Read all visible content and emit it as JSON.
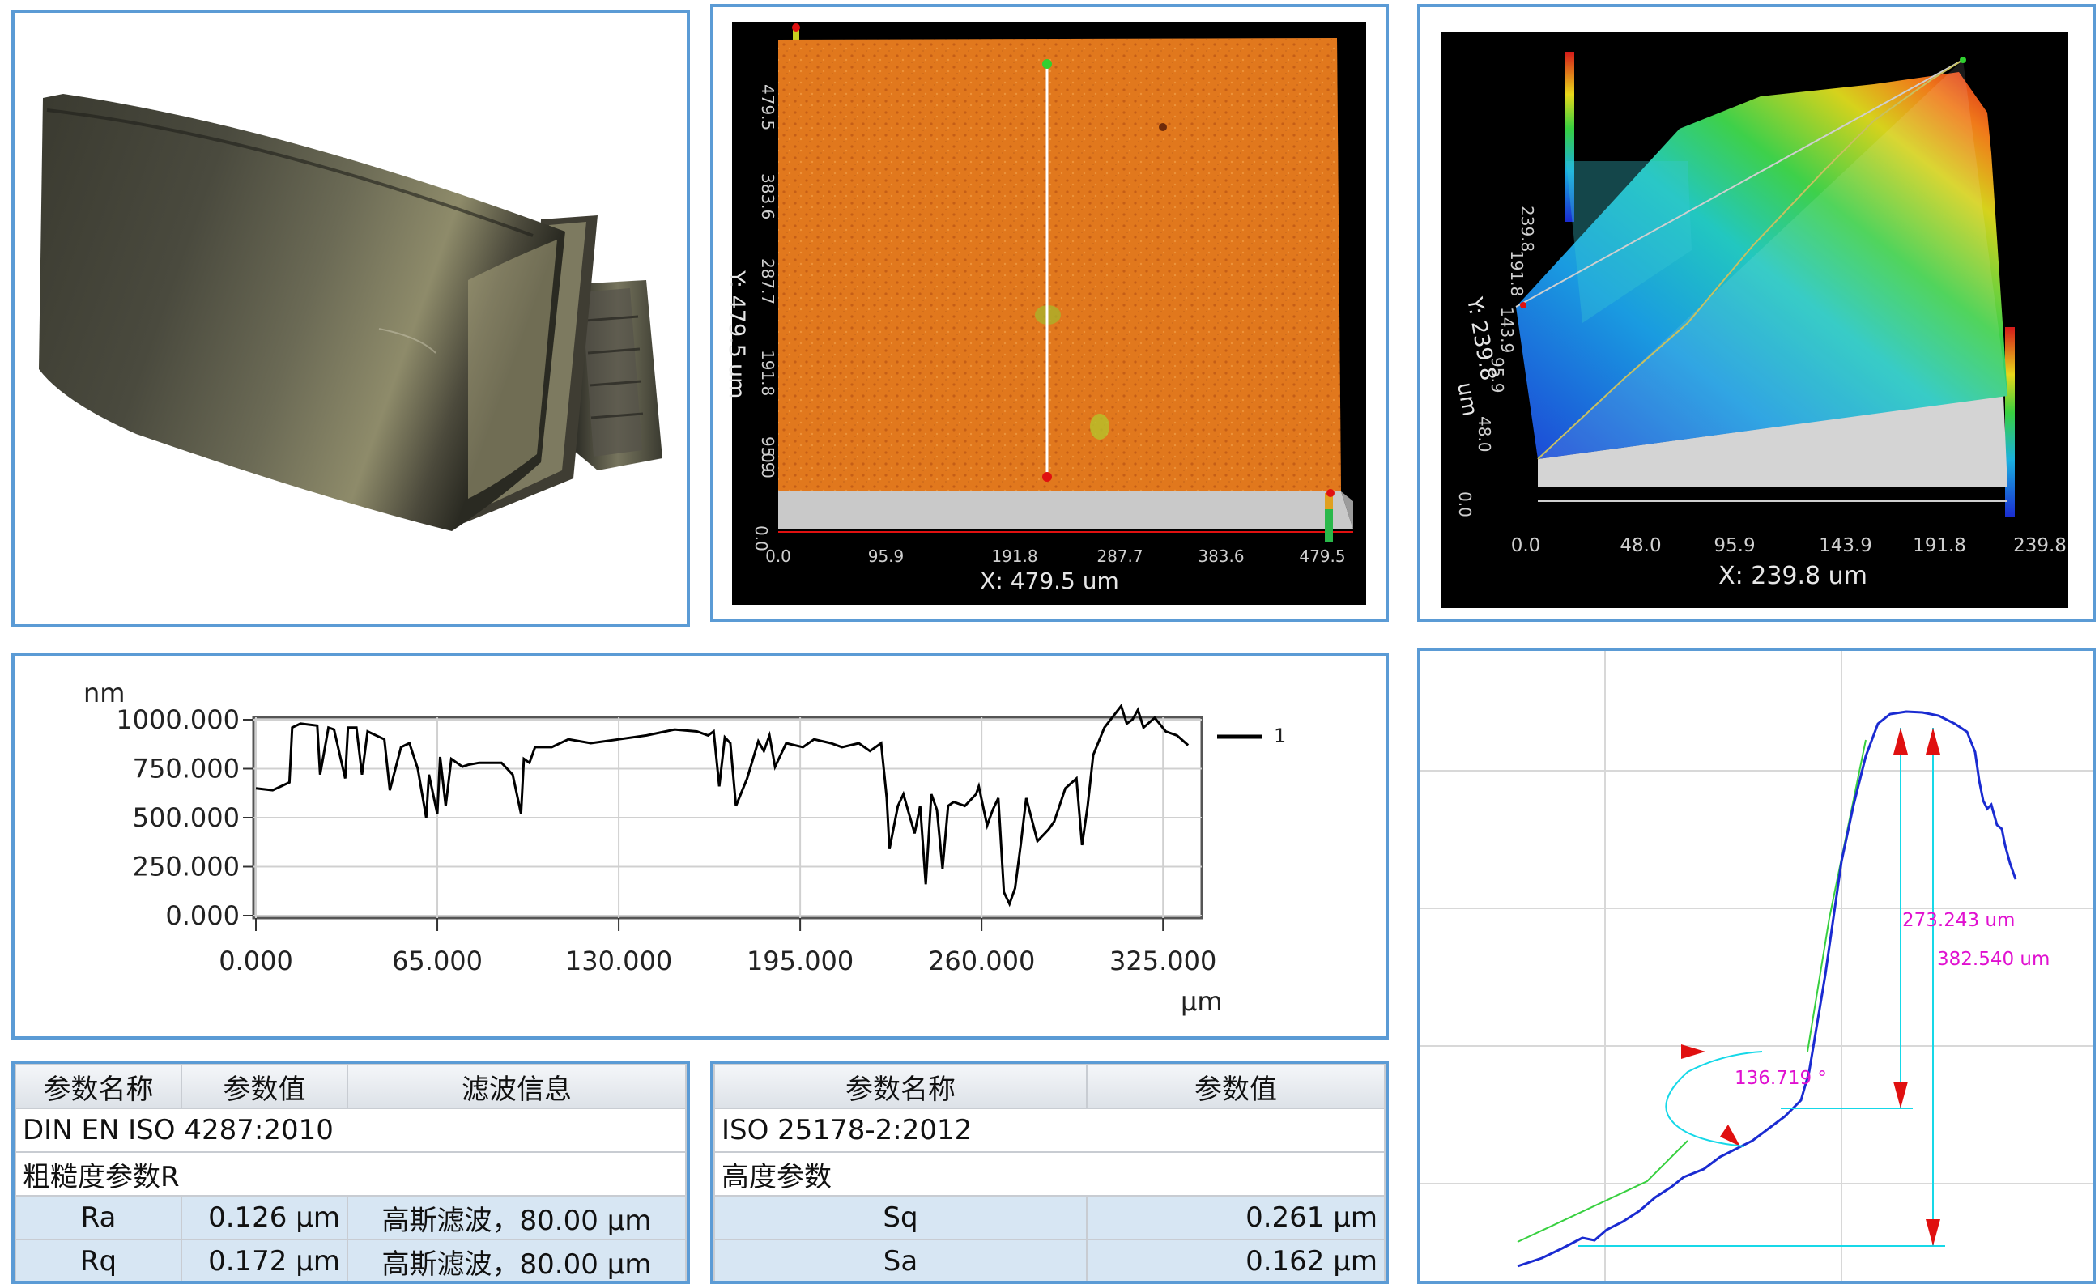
{
  "topo2d": {
    "y_axis_label": "Y: 479.5",
    "y_axis_unit": "um",
    "x_axis_label": "X: 479.5 um",
    "y_ticks": [
      "0.0",
      "95.9",
      "191.8",
      "287.7",
      "383.6",
      "479.5"
    ],
    "x_ticks": [
      "0.0",
      "95.9",
      "191.8",
      "287.7",
      "383.6",
      "479.5"
    ],
    "z_tick": "0.0"
  },
  "topo3d": {
    "y_axis_label": "Y: 239.8",
    "y_axis_unit": "um",
    "x_axis_label": "X: 239.8 um",
    "y_ticks": [
      "0.0",
      "48.0",
      "95.9",
      "143.9",
      "191.8",
      "239.8"
    ],
    "x_ticks": [
      "0.0",
      "48.0",
      "95.9",
      "143.9",
      "191.8",
      "239.8"
    ],
    "z_tick": "0.0"
  },
  "profile_chart": {
    "chart_data": {
      "type": "line",
      "ylabel": "nm",
      "xlabel": "μm",
      "xlim": [
        0,
        338
      ],
      "ylim": [
        0,
        1000
      ],
      "y_ticks": [
        "1000.000",
        "750.000",
        "500.000",
        "250.000",
        "0.000"
      ],
      "x_ticks": [
        "0.000",
        "65.000",
        "130.000",
        "195.000",
        "260.000",
        "325.000"
      ],
      "series": [
        {
          "name": "1",
          "x": [
            0,
            6,
            12,
            13,
            16,
            22,
            23,
            26,
            28,
            32,
            33,
            36,
            38,
            40,
            46,
            48,
            52,
            55,
            58,
            61,
            62,
            65,
            66,
            68,
            70,
            74,
            76,
            80,
            88,
            92,
            95,
            96,
            98,
            100,
            106,
            112,
            120,
            130,
            140,
            150,
            158,
            162,
            164,
            166,
            168,
            170,
            172,
            176,
            180,
            182,
            184,
            186,
            190,
            196,
            200,
            206,
            210,
            216,
            220,
            224,
            226,
            227,
            230,
            232,
            236,
            238,
            240,
            242,
            244,
            246,
            248,
            250,
            254,
            258,
            259,
            262,
            264,
            266,
            268,
            270,
            272,
            274,
            276,
            280,
            284,
            286,
            290,
            294,
            296,
            298,
            300,
            304,
            310,
            312,
            314,
            316,
            318,
            322,
            326,
            330,
            334
          ],
          "y": [
            650,
            640,
            680,
            960,
            980,
            970,
            720,
            960,
            950,
            700,
            960,
            960,
            720,
            940,
            900,
            640,
            860,
            880,
            750,
            500,
            720,
            520,
            810,
            560,
            800,
            760,
            770,
            780,
            780,
            720,
            520,
            800,
            780,
            860,
            860,
            900,
            880,
            900,
            920,
            950,
            940,
            920,
            940,
            660,
            910,
            880,
            560,
            700,
            890,
            840,
            920,
            760,
            880,
            860,
            900,
            880,
            860,
            880,
            840,
            880,
            600,
            340,
            560,
            620,
            420,
            560,
            160,
            620,
            540,
            240,
            560,
            580,
            560,
            620,
            660,
            460,
            540,
            600,
            120,
            60,
            140,
            360,
            600,
            380,
            440,
            480,
            650,
            700,
            360,
            560,
            820,
            960,
            1070,
            980,
            1000,
            1050,
            960,
            1010,
            940,
            920,
            870
          ]
        }
      ]
    }
  },
  "angle_chart": {
    "chart_data": {
      "type": "line",
      "annotations": [
        "273.243 um",
        "382.540 um",
        "136.719 °"
      ]
    }
  },
  "param_table": {
    "headers": [
      "参数名称",
      "参数值",
      "滤波信息"
    ],
    "rows": [
      {
        "name": "DIN EN ISO 4287:2010",
        "value": "",
        "filter": ""
      },
      {
        "name": "粗糙度参数R",
        "value": "",
        "filter": ""
      },
      {
        "name": "Ra",
        "value": "0.126 µm",
        "filter": "高斯滤波，80.00 µm"
      },
      {
        "name": "Rq",
        "value": "0.172 µm",
        "filter": "高斯滤波，80.00 µm"
      }
    ]
  },
  "area_table": {
    "headers": [
      "参数名称",
      "参数值"
    ],
    "rows": [
      {
        "name": "ISO 25178-2:2012",
        "value": ""
      },
      {
        "name": "高度参数",
        "value": ""
      },
      {
        "name": "Sq",
        "value": "0.261 µm"
      },
      {
        "name": "Sa",
        "value": "0.162 µm"
      }
    ]
  },
  "colors": {
    "panel_border": "#5b9bd5",
    "surface_2d": "#e0771c",
    "profile_line": "#000000",
    "angle_profile": "#1a2bd1",
    "annotation_text": "#e010d0",
    "measure_line": "#16d8e8",
    "arrow": "#e01010"
  }
}
